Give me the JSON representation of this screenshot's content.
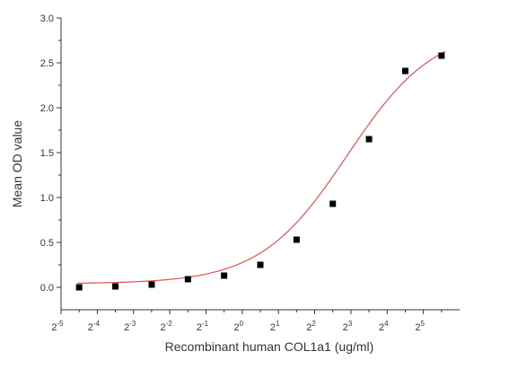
{
  "chart_data": {
    "type": "scatter",
    "title": "",
    "xlabel": "Recombinant human  COL1a1 (ug/ml)",
    "ylabel": "Mean OD value",
    "x_scale": "log2",
    "x_tick_base": "2",
    "x_tick_exponents": [
      "-5",
      "-4",
      "-3",
      "-2",
      "-1",
      "0",
      "1",
      "2",
      "3",
      "4",
      "5"
    ],
    "xlim": [
      0.03125,
      64
    ],
    "ylim": [
      -0.25,
      3.0
    ],
    "y_ticks": [
      "0.0",
      "0.5",
      "1.0",
      "1.5",
      "2.0",
      "2.5",
      "3.0"
    ],
    "grid": false,
    "series": [
      {
        "marker": "square",
        "color": "#000000",
        "x": [
          0.0442,
          0.0884,
          0.177,
          0.354,
          0.707,
          1.414,
          2.828,
          5.657,
          11.31,
          22.63,
          45.25
        ],
        "y": [
          0.0,
          0.01,
          0.03,
          0.09,
          0.13,
          0.25,
          0.53,
          0.93,
          1.65,
          2.41,
          2.58
        ]
      }
    ],
    "fit_curve": {
      "type": "sigmoidal",
      "color": "#e05050",
      "bottom": 0.04,
      "top": 2.9,
      "log2_ec50": 2.9,
      "slope": 1.2
    }
  }
}
